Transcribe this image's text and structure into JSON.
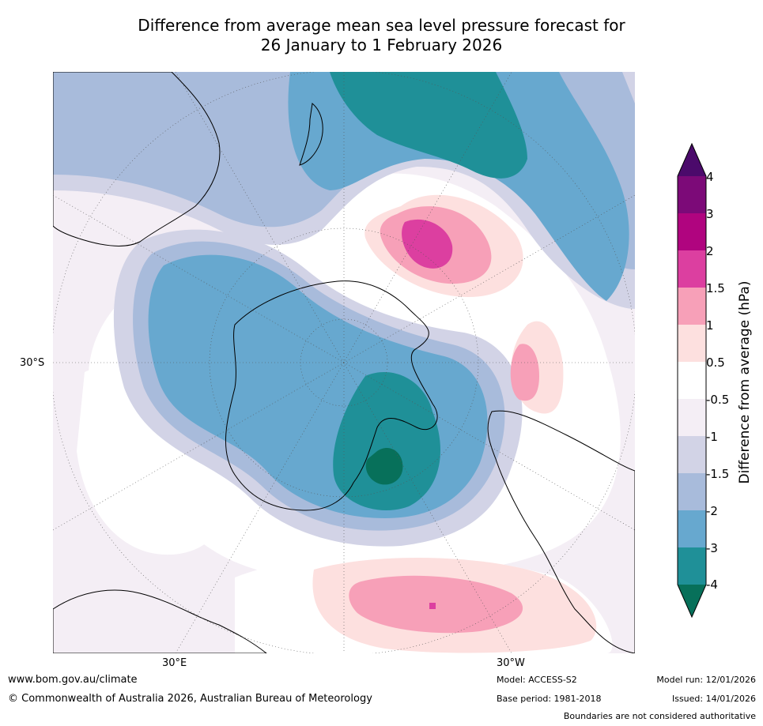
{
  "title_line1": "Difference from average mean sea level pressure forecast for",
  "title_line2": "26 January to 1 February 2026",
  "map": {
    "lat_label": "30°S",
    "lon_labels": [
      "30°E",
      "30°W"
    ]
  },
  "colorbar": {
    "label": "Difference from average (hPa)",
    "ticks": [
      "4",
      "3",
      "2",
      "1.5",
      "1",
      "0.5",
      "-0.5",
      "-1",
      "-1.5",
      "-2",
      "-3",
      "-4"
    ],
    "colors": {
      "gt4": "#4b0a6b",
      "3_4": "#7c0a78",
      "2_3": "#b0047f",
      "1.5_2": "#dc3fa0",
      "1_1.5": "#f7a0b8",
      "0.5_1": "#fde0df",
      "neutral": "#ffffff",
      "m1_m0.5": "#f4eef5",
      "m1.5_m1": "#d2d3e6",
      "m2_m1.5": "#a8bbdb",
      "m3_m2": "#67a8cf",
      "m4_m3": "#1f9098",
      "lt_m4": "#07705a"
    }
  },
  "footer": {
    "website": "www.bom.gov.au/climate",
    "copyright": "© Commonwealth of Australia 2026, Australian Bureau of Meteorology",
    "model": "Model: ACCESS-S2",
    "base_period": "Base period: 1981-2018",
    "model_run": "Model run: 12/01/2026",
    "issued": "Issued: 14/01/2026",
    "disclaimer": "Boundaries are not considered authoritative"
  }
}
